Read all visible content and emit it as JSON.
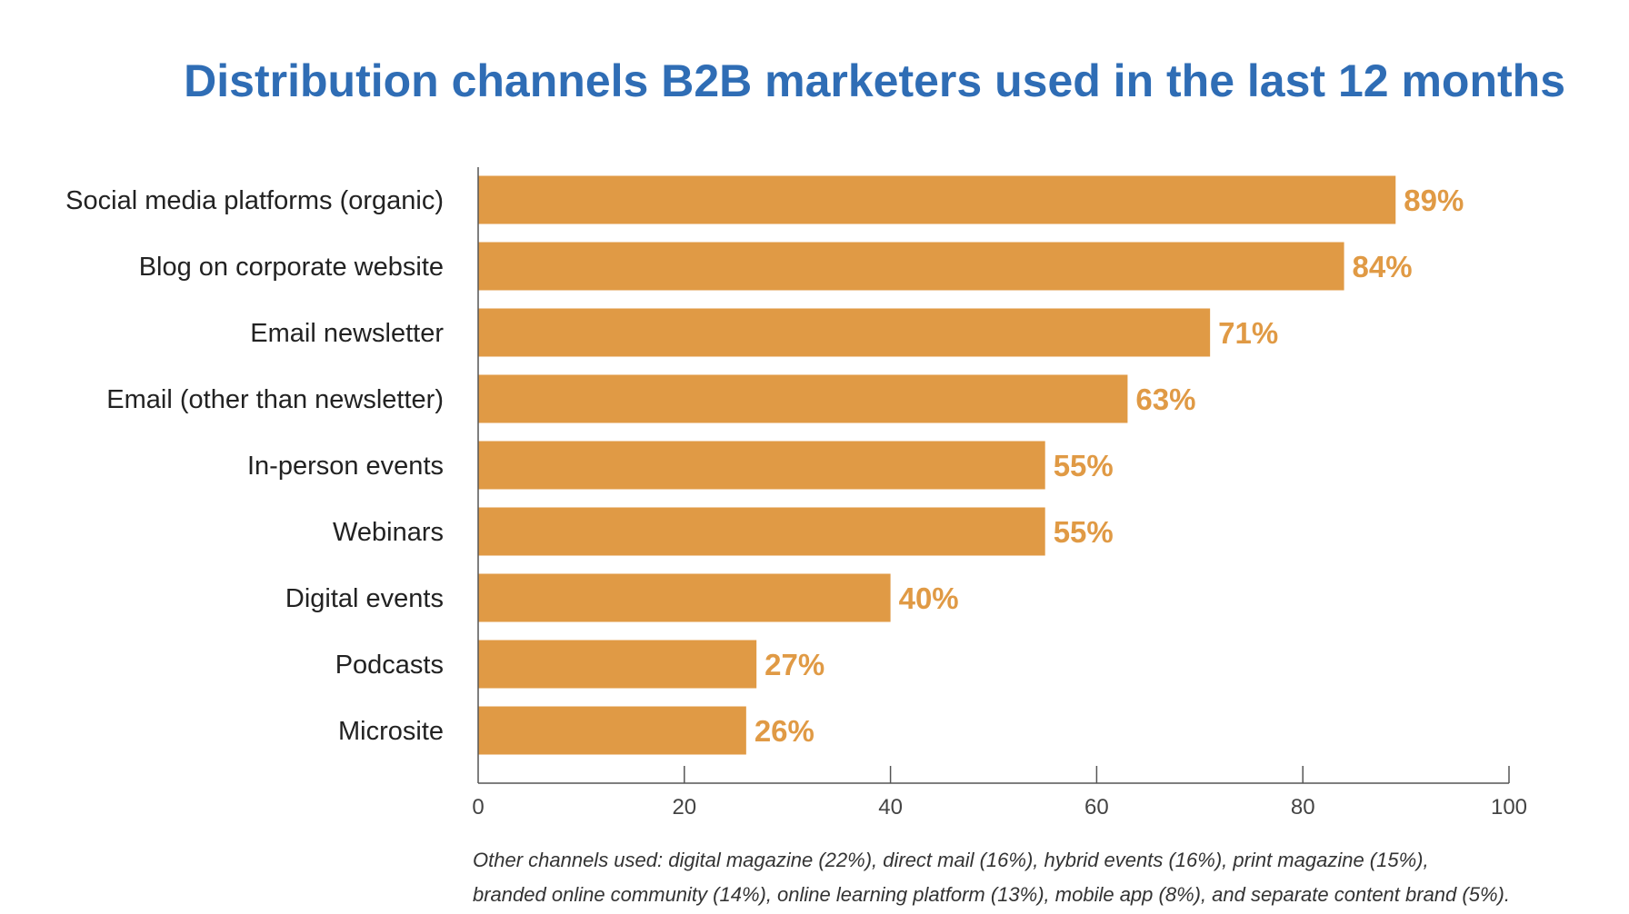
{
  "colors": {
    "title": "#2f6db5",
    "bar": "#e09a45",
    "value_label": "#e09a45",
    "axis": "#555555"
  },
  "chart_data": {
    "type": "bar",
    "orientation": "horizontal",
    "title": "Distribution channels B2B marketers used in the last 12 months",
    "categories": [
      "Social media platforms (organic)",
      "Blog on corporate website",
      "Email newsletter",
      "Email (other than newsletter)",
      "In-person events",
      "Webinars",
      "Digital events",
      "Podcasts",
      "Microsite"
    ],
    "values": [
      89,
      84,
      71,
      63,
      55,
      55,
      40,
      27,
      26
    ],
    "value_labels": [
      "89%",
      "84%",
      "71%",
      "63%",
      "55%",
      "55%",
      "40%",
      "27%",
      "26%"
    ],
    "xlim": [
      0,
      100
    ],
    "x_ticks": [
      "0",
      "20",
      "40",
      "60",
      "80",
      "100"
    ],
    "grid": false,
    "legend": "none"
  },
  "footnote": {
    "line1": "Other channels used: digital magazine (22%), direct mail (16%), hybrid events (16%), print magazine (15%),",
    "line2": "branded online community (14%), online learning platform (13%), mobile app (8%), and separate content brand (5%)."
  }
}
